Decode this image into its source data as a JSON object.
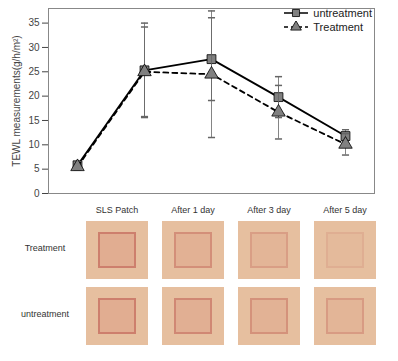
{
  "chart_data": {
    "type": "line",
    "y_label": "TEWL measurements(g/h/m²)",
    "categories": [
      null,
      null,
      null,
      null,
      null
    ],
    "ylim": [
      0,
      38
    ],
    "yticks": [
      0,
      5,
      10,
      15,
      20,
      25,
      30,
      35
    ],
    "tick_labels": "y",
    "legend": "top-right",
    "series": [
      {
        "name": "untreatment",
        "color": "#000000",
        "marker": "square",
        "line_style": "solid",
        "values": [
          5.8,
          25.3,
          27.6,
          19.8,
          11.8
        ],
        "errors": [
          0.7,
          9.7,
          8.5,
          4.2,
          1.3
        ]
      },
      {
        "name": "Treatment",
        "color": "#000000",
        "marker": "triangle",
        "line_style": "dashed",
        "values": [
          5.5,
          25.0,
          24.5,
          16.7,
          10.1
        ],
        "errors": [
          0.6,
          9.2,
          13.0,
          5.5,
          2.2
        ]
      }
    ]
  },
  "photo_panel": {
    "columns": [
      "SLS Patch",
      "After 1 day",
      "After 3 day",
      "After 5 day"
    ],
    "rows": [
      "Treatment",
      "untreatment"
    ]
  }
}
